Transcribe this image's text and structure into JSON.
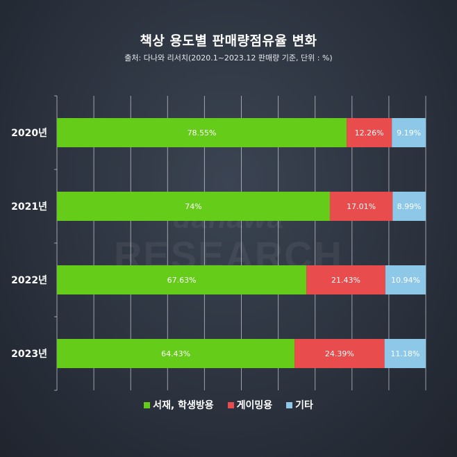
{
  "header": {
    "title": "책상 용도별 판매량점유율 변화",
    "subtitle": "출처: 다나와 리서치(2020.1~2023.12 판매량 기준, 단위 : %)"
  },
  "watermark": {
    "line1": "danawa",
    "line2": "RESEARCH"
  },
  "colors": {
    "background": "#2c333f",
    "series": [
      "#66cc1a",
      "#e84c4c",
      "#8ec8e8"
    ],
    "grid": "#ffffff"
  },
  "chart_data": {
    "type": "bar",
    "orientation": "horizontal",
    "stacked": true,
    "title": "책상 용도별 판매량점유율 변화",
    "categories": [
      "2020년",
      "2021년",
      "2022년",
      "2023년"
    ],
    "series": [
      {
        "name": "서재, 학생방용",
        "values": [
          78.55,
          74,
          67.63,
          64.43
        ],
        "labels": [
          "78.55%",
          "74%",
          "67.63%",
          "64.43%"
        ]
      },
      {
        "name": "게이밍용",
        "values": [
          12.26,
          17.01,
          21.43,
          24.39
        ],
        "labels": [
          "12.26%",
          "17.01%",
          "21.43%",
          "24.39%"
        ]
      },
      {
        "name": "기타",
        "values": [
          9.19,
          8.99,
          10.94,
          11.18
        ],
        "labels": [
          "9.19%",
          "8.99%",
          "10.94%",
          "11.18%"
        ]
      }
    ],
    "xlim": [
      0,
      100
    ],
    "grid": true,
    "legend": "bottom"
  }
}
